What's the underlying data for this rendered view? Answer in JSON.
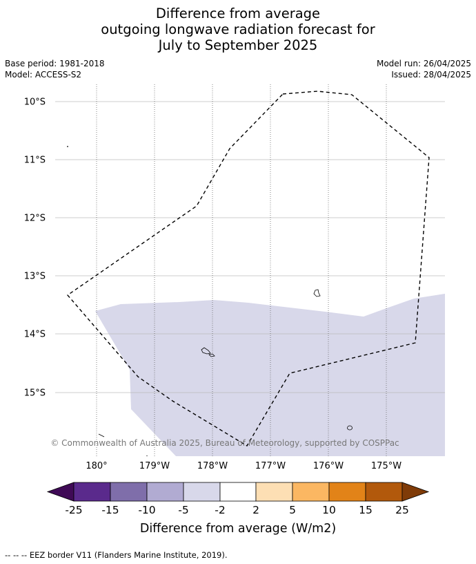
{
  "title": {
    "line1": "Difference from average",
    "line2": "outgoing longwave radiation forecast for",
    "line3": "July to September 2025"
  },
  "meta": {
    "base_period": "Base period: 1981-2018",
    "model": "Model: ACCESS-S2",
    "model_run": "Model run: 26/04/2025",
    "issued": "Issued: 28/04/2025"
  },
  "map": {
    "lat_labels": [
      "10°S",
      "11°S",
      "12°S",
      "13°S",
      "14°S",
      "15°S"
    ],
    "lon_labels": [
      "180°",
      "179°W",
      "178°W",
      "177°W",
      "176°W",
      "175°W"
    ],
    "copyright": "© Commonwealth of Australia 2025, Bureau of Meteorology, supported by COSPPac",
    "shaded_category": "-5 to -2",
    "shaded_color": "#d8d8ea",
    "eez_style": "dashed"
  },
  "colorbar": {
    "label": "Difference from average (W/m2)",
    "ticks": [
      "-25",
      "-15",
      "-10",
      "-5",
      "-2",
      "2",
      "5",
      "10",
      "15",
      "25"
    ],
    "colors": [
      "#3f0a56",
      "#5a2a8c",
      "#7f6eaa",
      "#b1abd2",
      "#d8d8ea",
      "#ffffff",
      "#fddfb4",
      "#fbb762",
      "#e28318",
      "#b2590c",
      "#7f3b08"
    ]
  },
  "footer": {
    "legend": "--  --  -- EEZ border V11 (Flanders Marine Institute, 2019)."
  }
}
